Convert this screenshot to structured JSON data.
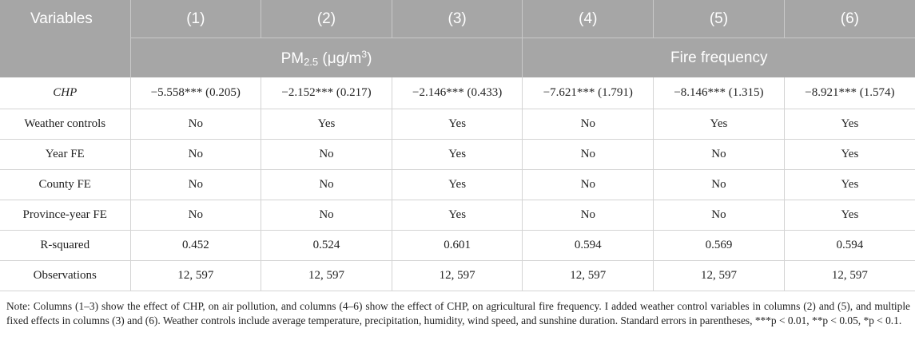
{
  "table": {
    "header": {
      "variables": "Variables",
      "columns": [
        "(1)",
        "(2)",
        "(3)",
        "(4)",
        "(5)",
        "(6)"
      ],
      "group_left_base": "PM",
      "group_left_sub": "2.5",
      "group_left_unit_pre": " (μg/m",
      "group_left_unit_sup": "3",
      "group_left_unit_post": ")",
      "group_right": "Fire frequency"
    },
    "rows": [
      {
        "label": "CHP",
        "italic": true,
        "cells": [
          "−5.558*** (0.205)",
          "−2.152*** (0.217)",
          "−2.146*** (0.433)",
          "−7.621*** (1.791)",
          "−8.146*** (1.315)",
          "−8.921*** (1.574)"
        ]
      },
      {
        "label": "Weather controls",
        "cells": [
          "No",
          "Yes",
          "Yes",
          "No",
          "Yes",
          "Yes"
        ]
      },
      {
        "label": "Year FE",
        "cells": [
          "No",
          "No",
          "Yes",
          "No",
          "No",
          "Yes"
        ]
      },
      {
        "label": "County FE",
        "cells": [
          "No",
          "No",
          "Yes",
          "No",
          "No",
          "Yes"
        ]
      },
      {
        "label": "Province-year FE",
        "cells": [
          "No",
          "No",
          "Yes",
          "No",
          "No",
          "Yes"
        ]
      },
      {
        "label": "R-squared",
        "cells": [
          "0.452",
          "0.524",
          "0.601",
          "0.594",
          "0.569",
          "0.594"
        ]
      },
      {
        "label": "Observations",
        "cells": [
          "12, 597",
          "12, 597",
          "12, 597",
          "12, 597",
          "12, 597",
          "12, 597"
        ]
      }
    ]
  },
  "note": "Note: Columns (1–3) show the effect of CHP, on air pollution, and columns (4–6) show the effect of CHP, on agricultural fire frequency. I added weather control variables in columns (2) and (5), and multiple fixed effects in columns (3) and (6). Weather controls include average temperature, precipitation, humidity, wind speed, and sunshine duration. Standard errors in parentheses, ***p < 0.01, **p < 0.05, *p < 0.1."
}
